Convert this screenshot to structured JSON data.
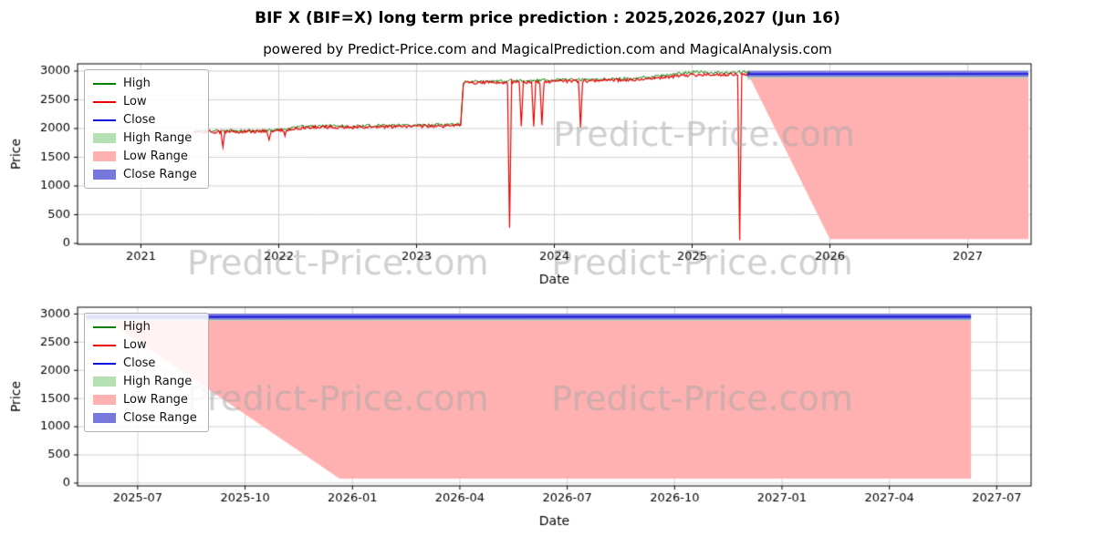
{
  "page": {
    "title": "BIF X (BIF=X) long term price prediction : 2025,2026,2027 (Jun 16)",
    "subtitle": "powered by Predict-Price.com and MagicalPrediction.com and MagicalAnalysis.com"
  },
  "watermark": "Predict-Price.com",
  "colors": {
    "high": "#008000",
    "low": "#e80000",
    "close": "#1010dd",
    "high_range": "#b4e0b4",
    "low_range": "#ffb0b0",
    "close_range": "#7878dc",
    "grid": "#d0d0d0",
    "watermark_color": "#aaaaaa"
  },
  "chart_data": [
    {
      "type": "line",
      "title": "",
      "xlabel": "Date",
      "ylabel": "Price",
      "xlim": [
        2020.54,
        2027.46
      ],
      "ylim": [
        -16,
        3126
      ],
      "xticks": [
        {
          "v": 2021,
          "label": "2021"
        },
        {
          "v": 2022,
          "label": "2022"
        },
        {
          "v": 2023,
          "label": "2023"
        },
        {
          "v": 2024,
          "label": "2024"
        },
        {
          "v": 2025,
          "label": "2025"
        },
        {
          "v": 2026,
          "label": "2026"
        },
        {
          "v": 2027,
          "label": "2027"
        }
      ],
      "yticks": [
        0,
        500,
        1000,
        1500,
        2000,
        2500,
        3000
      ],
      "grid": true,
      "legend_loc": "upper-left",
      "legend": [
        {
          "label": "High",
          "swatch": "line",
          "color": "high"
        },
        {
          "label": "Low",
          "swatch": "line",
          "color": "low"
        },
        {
          "label": "Close",
          "swatch": "line",
          "color": "close"
        },
        {
          "label": "High Range",
          "swatch": "patch",
          "color": "high_range"
        },
        {
          "label": "Low Range",
          "swatch": "patch",
          "color": "low_range"
        },
        {
          "label": "Close Range",
          "swatch": "patch",
          "color": "close_range"
        }
      ],
      "bands": [
        {
          "name": "High Range",
          "color": "high_range",
          "x": [
            2025.4,
            2027.44
          ],
          "upper": [
            2950,
            2950
          ],
          "lower": [
            2850,
            2850
          ]
        },
        {
          "name": "Low Range",
          "color": "low_range",
          "x": [
            2025.42,
            2026.0,
            2027.44
          ],
          "upper": [
            2880,
            2880,
            2880
          ],
          "lower": [
            2880,
            75,
            75
          ]
        },
        {
          "name": "Close Range",
          "color": "close_range",
          "x": [
            2025.4,
            2027.44
          ],
          "upper": [
            3005,
            3005
          ],
          "lower": [
            2900,
            2900
          ]
        }
      ],
      "series": [
        {
          "name": "High",
          "color": "high",
          "width": 1,
          "jitter": 28,
          "points": [
            [
              2021.38,
              1950
            ],
            [
              2021.55,
              1958
            ],
            [
              2021.8,
              1962
            ],
            [
              2021.95,
              1962
            ],
            [
              2022.05,
              1992
            ],
            [
              2022.2,
              2042
            ],
            [
              2022.35,
              2046
            ],
            [
              2022.5,
              2042
            ],
            [
              2022.65,
              2046
            ],
            [
              2022.8,
              2052
            ],
            [
              2023.0,
              2056
            ],
            [
              2023.15,
              2062
            ],
            [
              2023.32,
              2068
            ],
            [
              2023.34,
              2812
            ],
            [
              2023.5,
              2820
            ],
            [
              2023.7,
              2830
            ],
            [
              2023.9,
              2836
            ],
            [
              2024.1,
              2846
            ],
            [
              2024.3,
              2856
            ],
            [
              2024.5,
              2866
            ],
            [
              2024.7,
              2892
            ],
            [
              2024.85,
              2942
            ],
            [
              2024.95,
              2976
            ],
            [
              2025.05,
              2986
            ],
            [
              2025.15,
              2962
            ],
            [
              2025.25,
              2972
            ],
            [
              2025.35,
              2982
            ],
            [
              2025.42,
              2978
            ]
          ]
        },
        {
          "name": "Low",
          "color": "low",
          "width": 1.2,
          "jitter": 28,
          "points": [
            [
              2021.38,
              1936
            ],
            [
              2021.5,
              1944
            ],
            [
              2021.58,
              1942
            ],
            [
              2021.595,
              1680
            ],
            [
              2021.61,
              1942
            ],
            [
              2021.8,
              1950
            ],
            [
              2021.915,
              1948
            ],
            [
              2021.93,
              1820
            ],
            [
              2021.945,
              1948
            ],
            [
              2022.03,
              1972
            ],
            [
              2022.045,
              1880
            ],
            [
              2022.06,
              1976
            ],
            [
              2022.2,
              2020
            ],
            [
              2022.35,
              2024
            ],
            [
              2022.5,
              2021
            ],
            [
              2022.65,
              2026
            ],
            [
              2022.8,
              2032
            ],
            [
              2023.0,
              2038
            ],
            [
              2023.15,
              2044
            ],
            [
              2023.32,
              2050
            ],
            [
              2023.34,
              2790
            ],
            [
              2023.5,
              2800
            ],
            [
              2023.66,
              2806
            ],
            [
              2023.675,
              280
            ],
            [
              2023.69,
              2806
            ],
            [
              2023.745,
              2806
            ],
            [
              2023.76,
              2030
            ],
            [
              2023.775,
              2806
            ],
            [
              2023.835,
              2808
            ],
            [
              2023.85,
              2030
            ],
            [
              2023.865,
              2808
            ],
            [
              2023.895,
              2810
            ],
            [
              2023.91,
              2045
            ],
            [
              2023.925,
              2810
            ],
            [
              2024.1,
              2820
            ],
            [
              2024.175,
              2826
            ],
            [
              2024.19,
              2040
            ],
            [
              2024.205,
              2826
            ],
            [
              2024.4,
              2838
            ],
            [
              2024.6,
              2852
            ],
            [
              2024.8,
              2886
            ],
            [
              2024.95,
              2926
            ],
            [
              2025.05,
              2936
            ],
            [
              2025.15,
              2930
            ],
            [
              2025.25,
              2938
            ],
            [
              2025.33,
              2942
            ],
            [
              2025.345,
              80
            ],
            [
              2025.36,
              2942
            ],
            [
              2025.42,
              2946
            ]
          ]
        },
        {
          "name": "Close",
          "color": "close",
          "width": 1.6,
          "jitter": 0,
          "points": [
            [
              2025.4,
              2948
            ],
            [
              2027.44,
              2952
            ]
          ]
        }
      ],
      "watermarks": [
        {
          "fx": 0.657,
          "fy": 0.404
        },
        {
          "fx": 0.273,
          "fy": 1.116
        },
        {
          "fx": 0.655,
          "fy": 1.116
        }
      ]
    },
    {
      "type": "line",
      "title": "",
      "xlabel": "Date",
      "ylabel": "Price",
      "xlim": [
        2025.36,
        2027.58
      ],
      "ylim": [
        -50,
        3120
      ],
      "xticks": [
        {
          "v": 2025.5,
          "label": "2025-07"
        },
        {
          "v": 2025.75,
          "label": "2025-10"
        },
        {
          "v": 2026.0,
          "label": "2026-01"
        },
        {
          "v": 2026.25,
          "label": "2026-04"
        },
        {
          "v": 2026.5,
          "label": "2026-07"
        },
        {
          "v": 2026.75,
          "label": "2026-10"
        },
        {
          "v": 2027.0,
          "label": "2027-01"
        },
        {
          "v": 2027.25,
          "label": "2027-04"
        },
        {
          "v": 2027.5,
          "label": "2027-07"
        }
      ],
      "yticks": [
        0,
        500,
        1000,
        1500,
        2000,
        2500,
        3000
      ],
      "grid": true,
      "legend_loc": "upper-left",
      "legend": [
        {
          "label": "High",
          "swatch": "line",
          "color": "high"
        },
        {
          "label": "Low",
          "swatch": "line",
          "color": "low"
        },
        {
          "label": "Close",
          "swatch": "line",
          "color": "close"
        },
        {
          "label": "High Range",
          "swatch": "patch",
          "color": "high_range"
        },
        {
          "label": "Low Range",
          "swatch": "patch",
          "color": "low_range"
        },
        {
          "label": "Close Range",
          "swatch": "patch",
          "color": "close_range"
        }
      ],
      "bands": [
        {
          "name": "High Range",
          "color": "high_range",
          "x": [
            2025.38,
            2027.44
          ],
          "upper": [
            2950,
            2950
          ],
          "lower": [
            2850,
            2850
          ]
        },
        {
          "name": "Low Range",
          "color": "low_range",
          "x": [
            2025.43,
            2025.97,
            2027.44
          ],
          "upper": [
            2880,
            2880,
            2880
          ],
          "lower": [
            2880,
            80,
            80
          ]
        },
        {
          "name": "Close Range",
          "color": "close_range",
          "x": [
            2025.38,
            2027.44
          ],
          "upper": [
            3005,
            3005
          ],
          "lower": [
            2900,
            2900
          ]
        }
      ],
      "series": [
        {
          "name": "Close",
          "color": "close",
          "width": 1.6,
          "jitter": 0,
          "points": [
            [
              2025.38,
              2948
            ],
            [
              2027.44,
              2952
            ]
          ]
        }
      ],
      "watermarks": [
        {
          "fx": 0.273,
          "fy": 0.525
        },
        {
          "fx": 0.655,
          "fy": 0.525
        }
      ]
    }
  ]
}
